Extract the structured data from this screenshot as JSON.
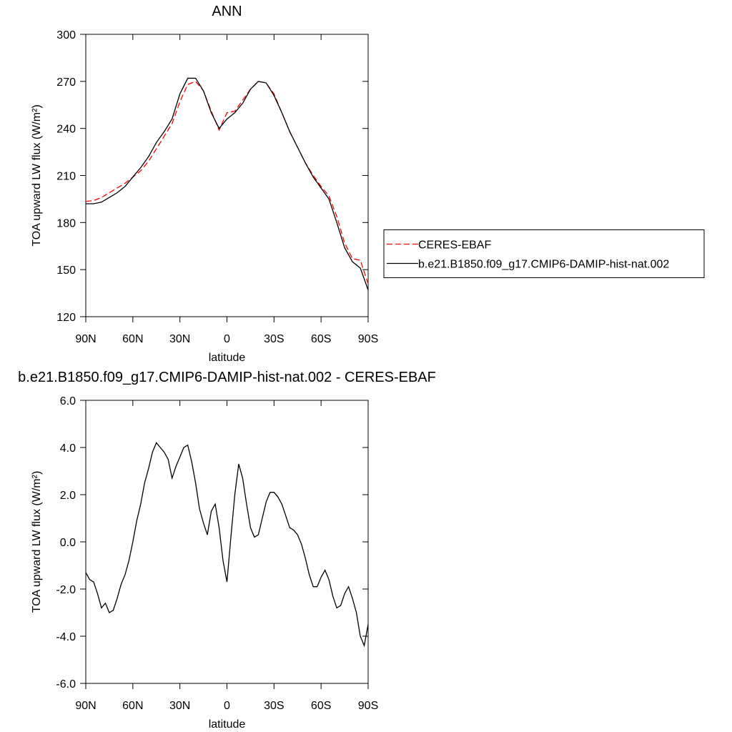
{
  "chart_data": [
    {
      "type": "line",
      "title": "ANN",
      "xlabel": "latitude",
      "ylabel": "TOA upward LW flux (W/m²)",
      "xlim": [
        90,
        -90
      ],
      "xticks": [
        {
          "value": 90,
          "label": "90N"
        },
        {
          "value": 60,
          "label": "60N"
        },
        {
          "value": 30,
          "label": "30N"
        },
        0,
        {
          "value": -30,
          "label": "30S"
        },
        {
          "value": -60,
          "label": "60S"
        },
        {
          "value": -90,
          "label": "90S"
        }
      ],
      "ylim": [
        120,
        300
      ],
      "yticks": [
        120,
        150,
        180,
        210,
        240,
        270,
        300
      ],
      "legend": "right",
      "x": [
        90,
        85,
        80,
        75,
        70,
        65,
        60,
        55,
        50,
        45,
        40,
        35,
        30,
        25,
        20,
        15,
        10,
        5,
        0,
        -5,
        -10,
        -15,
        -20,
        -25,
        -30,
        -35,
        -40,
        -45,
        -50,
        -55,
        -60,
        -65,
        -70,
        -75,
        -80,
        -85,
        -90
      ],
      "series": [
        {
          "name": "CERES-EBAF",
          "color": "#ff0000",
          "linestyle": "dashed",
          "values": [
            193.5,
            194,
            196,
            199,
            202,
            205,
            209,
            213,
            219,
            227,
            235,
            243,
            257,
            268,
            270,
            264,
            251,
            239,
            250,
            251,
            258,
            265,
            270,
            269,
            262,
            250,
            238,
            228,
            218,
            210,
            203,
            197,
            184,
            167,
            157,
            156,
            141
          ]
        },
        {
          "name": "b.e21.B1850.f09_g17.CMIP6-DAMIP-hist-nat.002",
          "color": "#000000",
          "linestyle": "solid",
          "values": [
            192,
            192,
            193,
            196,
            199,
            203,
            209,
            215,
            222,
            231,
            238,
            246,
            262,
            272,
            272,
            264,
            250,
            240,
            246,
            250,
            256,
            265,
            270,
            269,
            261,
            250,
            238,
            228,
            218,
            209,
            202,
            195,
            180,
            164,
            155,
            151,
            137
          ]
        }
      ]
    },
    {
      "type": "line",
      "title": "b.e21.B1850.f09_g17.CMIP6-DAMIP-hist-nat.002 - CERES-EBAF",
      "xlabel": "latitude",
      "ylabel": "TOA upward LW flux (W/m²)",
      "xlim": [
        90,
        -90
      ],
      "xticks": [
        {
          "value": 90,
          "label": "90N"
        },
        {
          "value": 60,
          "label": "60N"
        },
        {
          "value": 30,
          "label": "30N"
        },
        0,
        {
          "value": -30,
          "label": "30S"
        },
        {
          "value": -60,
          "label": "60S"
        },
        {
          "value": -90,
          "label": "90S"
        }
      ],
      "ylim": [
        -6,
        6
      ],
      "yticks": [
        {
          "value": -6,
          "label": "-6.0"
        },
        {
          "value": -4,
          "label": "-4.0"
        },
        {
          "value": -2,
          "label": "-2.0"
        },
        {
          "value": 0,
          "label": "0.0"
        },
        {
          "value": 2,
          "label": "2.0"
        },
        {
          "value": 4,
          "label": "4.0"
        },
        {
          "value": 6,
          "label": "6.0"
        }
      ],
      "x": [
        90,
        87.5,
        85,
        82.5,
        80,
        77.5,
        75,
        72.5,
        70,
        67.5,
        65,
        62.5,
        60,
        57.5,
        55,
        52.5,
        50,
        47.5,
        45,
        42.5,
        40,
        37.5,
        35,
        32.5,
        30,
        27.5,
        25,
        22.5,
        20,
        17.5,
        15,
        12.5,
        10,
        7.5,
        5,
        2.5,
        0,
        -2.5,
        -5,
        -7.5,
        -10,
        -12.5,
        -15,
        -17.5,
        -20,
        -22.5,
        -25,
        -27.5,
        -30,
        -32.5,
        -35,
        -37.5,
        -40,
        -42.5,
        -45,
        -47.5,
        -50,
        -52.5,
        -55,
        -57.5,
        -60,
        -62.5,
        -65,
        -67.5,
        -70,
        -72.5,
        -75,
        -77.5,
        -80,
        -82.5,
        -85,
        -87.5,
        -90
      ],
      "series": [
        {
          "color": "#000000",
          "linestyle": "solid",
          "values": [
            -1.3,
            -1.6,
            -1.7,
            -2.2,
            -2.8,
            -2.6,
            -3.0,
            -2.9,
            -2.4,
            -1.8,
            -1.4,
            -0.8,
            0.0,
            0.9,
            1.6,
            2.5,
            3.1,
            3.8,
            4.2,
            4.0,
            3.8,
            3.5,
            2.7,
            3.2,
            3.6,
            4.0,
            4.1,
            3.4,
            2.5,
            1.4,
            0.8,
            0.3,
            1.3,
            1.6,
            0.6,
            -0.8,
            -1.7,
            0.2,
            2.0,
            3.3,
            2.7,
            1.6,
            0.6,
            0.2,
            0.3,
            1.0,
            1.7,
            2.1,
            2.1,
            1.9,
            1.6,
            1.1,
            0.6,
            0.5,
            0.3,
            -0.1,
            -0.7,
            -1.4,
            -1.9,
            -1.9,
            -1.5,
            -1.2,
            -1.6,
            -2.3,
            -2.8,
            -2.7,
            -2.2,
            -1.9,
            -2.4,
            -3.0,
            -4.0,
            -4.4,
            -3.5
          ]
        }
      ]
    }
  ]
}
